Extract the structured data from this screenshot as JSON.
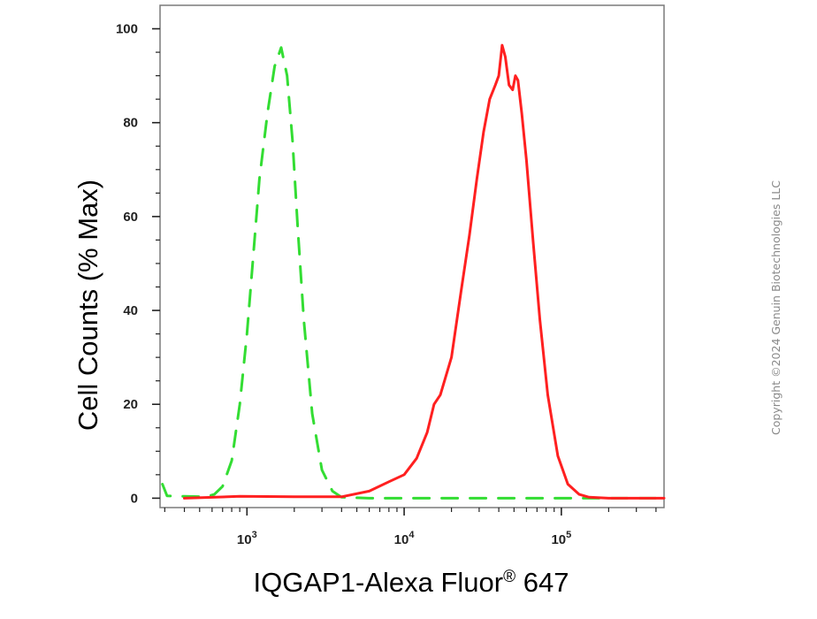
{
  "chart_data": {
    "type": "line",
    "title": "",
    "xlabel": "IQGAP1-Alexa Fluor",
    "xlabel_superscript": "®",
    "xlabel_suffix": " 647",
    "ylabel": "Cell Counts (% Max)",
    "x_scale": "log",
    "xlim": [
      280,
      450000
    ],
    "ylim": [
      -2,
      105
    ],
    "y_ticks": [
      {
        "value": 0,
        "label": "0"
      },
      {
        "value": 20,
        "label": "20"
      },
      {
        "value": 40,
        "label": "40"
      },
      {
        "value": 60,
        "label": "60"
      },
      {
        "value": 80,
        "label": "80"
      },
      {
        "value": 100,
        "label": "100"
      }
    ],
    "x_ticks": [
      {
        "value": 1000,
        "base": "10",
        "exp": "3"
      },
      {
        "value": 10000,
        "base": "10",
        "exp": "4"
      },
      {
        "value": 100000,
        "base": "10",
        "exp": "5"
      }
    ],
    "grid": false,
    "legend": "none",
    "series": [
      {
        "color": "#33dd33",
        "style": "dashed",
        "points": [
          [
            290,
            3
          ],
          [
            310,
            0.5
          ],
          [
            400,
            0.4
          ],
          [
            550,
            0.3
          ],
          [
            620,
            0.8
          ],
          [
            700,
            2.5
          ],
          [
            800,
            8
          ],
          [
            900,
            20
          ],
          [
            1000,
            35
          ],
          [
            1100,
            52
          ],
          [
            1200,
            68
          ],
          [
            1350,
            82
          ],
          [
            1500,
            92
          ],
          [
            1650,
            96
          ],
          [
            1800,
            90
          ],
          [
            1950,
            76
          ],
          [
            2100,
            58
          ],
          [
            2300,
            38
          ],
          [
            2600,
            18
          ],
          [
            3000,
            6
          ],
          [
            3500,
            1.5
          ],
          [
            4000,
            0.2
          ],
          [
            6000,
            0
          ],
          [
            20000,
            0
          ],
          [
            100000,
            0
          ],
          [
            450000,
            0
          ]
        ]
      },
      {
        "color": "#ff2020",
        "style": "solid",
        "points": [
          [
            400,
            0
          ],
          [
            900,
            0.4
          ],
          [
            2000,
            0.3
          ],
          [
            4000,
            0.3
          ],
          [
            6000,
            1.5
          ],
          [
            8000,
            3.5
          ],
          [
            10000,
            5
          ],
          [
            12000,
            8.5
          ],
          [
            14000,
            14
          ],
          [
            15500,
            20
          ],
          [
            17000,
            22
          ],
          [
            20000,
            30
          ],
          [
            23000,
            44
          ],
          [
            26000,
            56
          ],
          [
            29000,
            68
          ],
          [
            32000,
            78
          ],
          [
            35000,
            85
          ],
          [
            38000,
            88
          ],
          [
            40000,
            90
          ],
          [
            42000,
            96.5
          ],
          [
            44000,
            94
          ],
          [
            46500,
            88
          ],
          [
            49000,
            87
          ],
          [
            51000,
            90
          ],
          [
            53000,
            89
          ],
          [
            56000,
            82
          ],
          [
            60000,
            72
          ],
          [
            66000,
            55
          ],
          [
            73000,
            38
          ],
          [
            82000,
            22
          ],
          [
            95000,
            9
          ],
          [
            110000,
            3
          ],
          [
            130000,
            0.8
          ],
          [
            150000,
            0.2
          ],
          [
            200000,
            0
          ],
          [
            450000,
            0
          ]
        ]
      }
    ]
  },
  "watermark": "Copyright ©2024 Genuin Biotechnologies LLC"
}
